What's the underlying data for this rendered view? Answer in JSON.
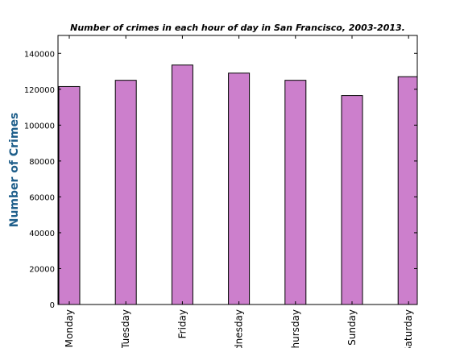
{
  "chart_data": {
    "type": "bar",
    "title": "Number of crimes in each hour of day in San Francisco, 2003-2013.",
    "xlabel": "",
    "ylabel": "Number of Crimes",
    "categories": [
      "Monday",
      "Tuesday",
      "Friday",
      "Wednesday",
      "Thursday",
      "Sunday",
      "Saturday"
    ],
    "values": [
      121500,
      125000,
      133500,
      129000,
      125000,
      116500,
      127000
    ],
    "ylim": [
      0,
      150000
    ],
    "yticks": [
      0,
      20000,
      40000,
      60000,
      80000,
      100000,
      120000,
      140000
    ],
    "bar_color": "#cc7fcc",
    "grid": false,
    "legend": "none"
  }
}
